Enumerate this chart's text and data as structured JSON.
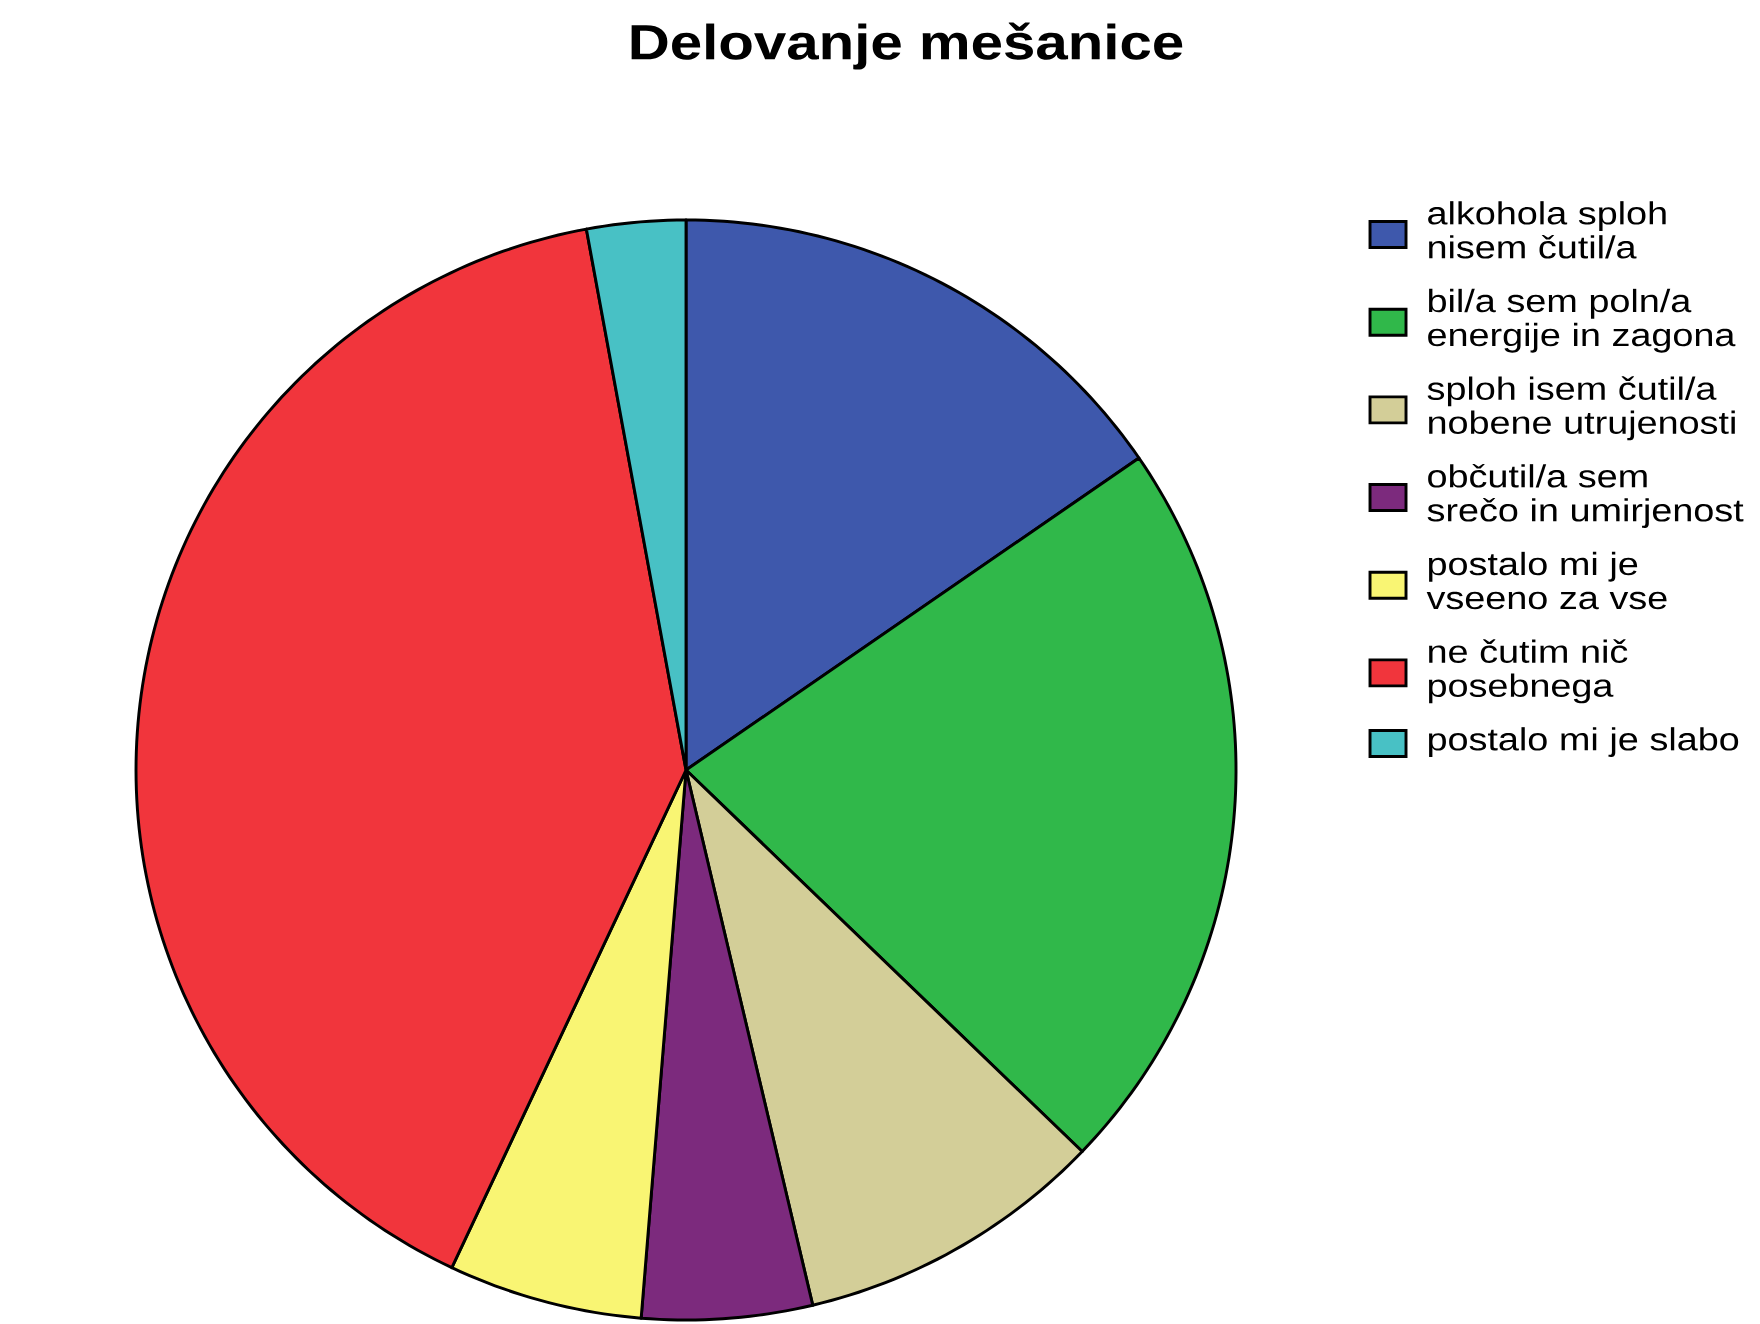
{
  "chart_data": {
    "type": "pie",
    "title": "Delovanje mešanice",
    "categories": [
      "alkohola sploh nisem čutil/a",
      "bil/a sem poln/a energije in zagona",
      "sploh isem čutil/a nobene utrujenosti",
      "občutil/a sem srečo in umirjenost",
      "postalo mi je vseeno za vse",
      "ne čutim nič posebnega",
      "postalo mi je slabo"
    ],
    "values": [
      15.4,
      21.8,
      9.1,
      5.0,
      5.7,
      40.1,
      2.9
    ],
    "colors": [
      "#3e58ac",
      "#30b84a",
      "#d3ce98",
      "#7c2a7d",
      "#f9f573",
      "#f1353c",
      "#48c1c5"
    ],
    "legend": "right"
  }
}
